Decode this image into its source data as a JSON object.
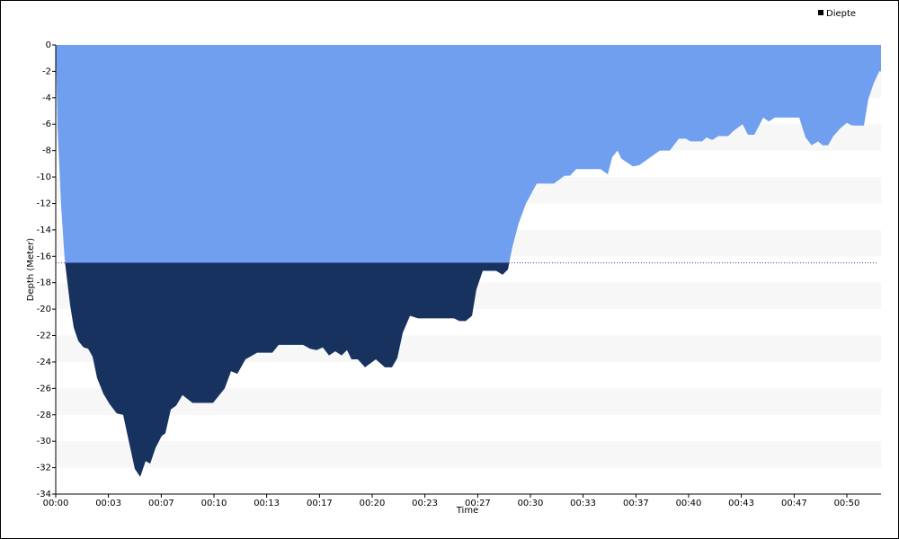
{
  "chart_data": {
    "type": "area",
    "xlabel": "Time",
    "ylabel": "Depth (Meter)",
    "series": [
      {
        "name": "Diepte",
        "color": "#6f9fee",
        "below_color": "#17325f",
        "x": [
          0,
          0.11,
          0.34,
          0.57,
          0.91,
          1.14,
          1.42,
          1.76,
          2.05,
          2.33,
          2.61,
          3.01,
          3.41,
          3.86,
          4.26,
          4.6,
          5,
          5.34,
          5.68,
          5.97,
          6.31,
          6.7,
          6.93,
          7.27,
          7.61,
          8.01,
          8.64,
          9.94,
          10.68,
          11.08,
          11.48,
          11.99,
          12.73,
          13.69,
          14.09,
          15.63,
          16.08,
          16.48,
          16.88,
          17.27,
          17.67,
          18.07,
          18.41,
          18.69,
          19.09,
          19.55,
          20.23,
          20.8,
          21.25,
          21.59,
          21.93,
          22.39,
          22.9,
          25.17,
          25.51,
          25.91,
          26.31,
          26.59,
          26.99,
          27.84,
          28.24,
          28.58,
          28.86,
          29.26,
          29.72,
          30.4,
          31.48,
          32.16,
          32.5,
          32.9,
          34.43,
          34.89,
          35.17,
          35.51,
          35.74,
          36.48,
          36.88,
          38.18,
          38.81,
          39.38,
          39.83,
          40.11,
          40.85,
          41.14,
          41.48,
          41.88,
          42.5,
          42.84,
          43.41,
          43.75,
          44.15,
          44.72,
          45.06,
          45.45,
          46.99,
          47.39,
          47.78,
          48.18,
          48.47,
          48.81,
          49.15,
          49.6,
          50,
          50.34,
          51.08,
          51.36,
          51.7,
          52.05
        ],
        "values": [
          0,
          -6.1,
          -12.2,
          -16.3,
          -19.7,
          -21.4,
          -22.4,
          -22.9,
          -23,
          -23.6,
          -25.2,
          -26.4,
          -27.2,
          -27.9,
          -28,
          -29.9,
          -32.1,
          -32.7,
          -31.5,
          -31.7,
          -30.5,
          -29.6,
          -29.4,
          -27.6,
          -27.3,
          -26.5,
          -27.1,
          -27.1,
          -26,
          -24.7,
          -24.9,
          -23.8,
          -23.3,
          -23.3,
          -22.7,
          -22.7,
          -23,
          -23.1,
          -22.9,
          -23.5,
          -23.2,
          -23.5,
          -23.1,
          -23.8,
          -23.8,
          -24.4,
          -23.8,
          -24.4,
          -24.4,
          -23.7,
          -21.8,
          -20.5,
          -20.7,
          -20.7,
          -20.9,
          -20.9,
          -20.5,
          -18.5,
          -17.1,
          -17.1,
          -17.4,
          -17,
          -15.3,
          -13.5,
          -12,
          -10.5,
          -10.5,
          -9.9,
          -9.9,
          -9.4,
          -9.4,
          -9.8,
          -8.5,
          -8,
          -8.6,
          -9.2,
          -9.1,
          -8,
          -8,
          -7.1,
          -7.1,
          -7.3,
          -7.3,
          -7,
          -7.2,
          -6.9,
          -6.9,
          -6.5,
          -6,
          -6.8,
          -6.8,
          -5.5,
          -5.8,
          -5.5,
          -5.5,
          -7,
          -7.6,
          -7.3,
          -7.6,
          -7.6,
          -6.9,
          -6.3,
          -5.9,
          -6.1,
          -6.1,
          -4.1,
          -2.9,
          -2
        ]
      }
    ],
    "threshold": -16.5,
    "xlim": [
      0,
      52.16
    ],
    "xticks": [
      {
        "value": 0,
        "label": "00:00"
      },
      {
        "value": 3.33,
        "label": "00:03"
      },
      {
        "value": 6.67,
        "label": "00:07"
      },
      {
        "value": 10,
        "label": "00:10"
      },
      {
        "value": 13.33,
        "label": "00:13"
      },
      {
        "value": 16.67,
        "label": "00:17"
      },
      {
        "value": 20,
        "label": "00:20"
      },
      {
        "value": 23.33,
        "label": "00:23"
      },
      {
        "value": 26.67,
        "label": "00:27"
      },
      {
        "value": 30,
        "label": "00:30"
      },
      {
        "value": 33.33,
        "label": "00:33"
      },
      {
        "value": 36.67,
        "label": "00:37"
      },
      {
        "value": 40,
        "label": "00:40"
      },
      {
        "value": 43.33,
        "label": "00:43"
      },
      {
        "value": 46.67,
        "label": "00:47"
      },
      {
        "value": 50,
        "label": "00:50"
      }
    ],
    "ylim": [
      -34,
      0
    ],
    "yticks": [
      0,
      -2,
      -4,
      -6,
      -8,
      -10,
      -12,
      -14,
      -16,
      -18,
      -20,
      -22,
      -24,
      -26,
      -28,
      -30,
      -32,
      -34
    ],
    "striped_grid": true,
    "legend": "top-right"
  }
}
